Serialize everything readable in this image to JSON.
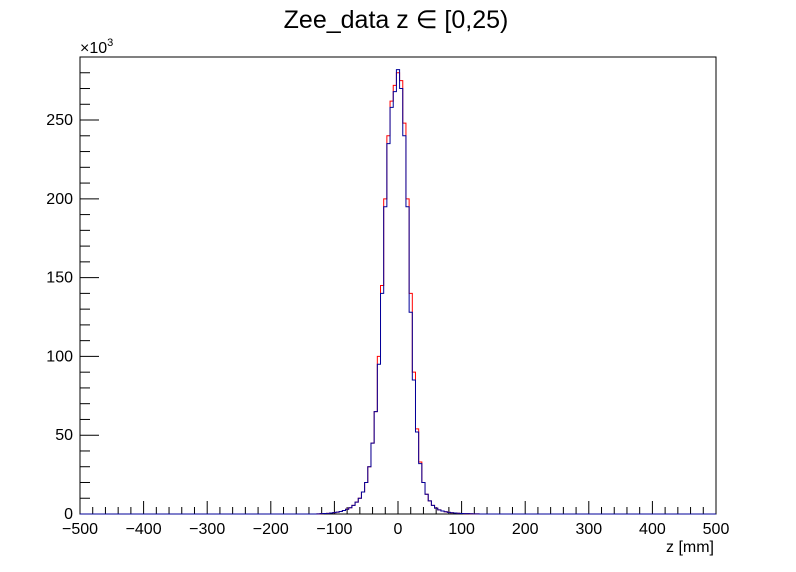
{
  "chart_data": {
    "type": "histogram",
    "title": "Zee_data z  ∈ [0,25)",
    "xlabel": "z [mm]",
    "ylabel": "",
    "y_multiplier": "×10",
    "y_multiplier_exponent": "3",
    "xlim": [
      -500,
      500
    ],
    "ylim": [
      0,
      290
    ],
    "x_ticks": [
      "−500",
      "−400",
      "−300",
      "−200",
      "−100",
      "0",
      "100",
      "200",
      "300",
      "400",
      "500"
    ],
    "y_ticks": [
      "0",
      "50",
      "100",
      "150",
      "200",
      "250"
    ],
    "grid": false,
    "bin_width": 5,
    "series": [
      {
        "color": "#ff0000",
        "x": [
          -125,
          -120,
          -115,
          -110,
          -105,
          -100,
          -95,
          -90,
          -85,
          -80,
          -75,
          -70,
          -65,
          -60,
          -55,
          -50,
          -45,
          -40,
          -35,
          -30,
          -25,
          -20,
          -15,
          -10,
          -5,
          0,
          5,
          10,
          15,
          20,
          25,
          30,
          35,
          40,
          45,
          50,
          55,
          60,
          65,
          70,
          75,
          80,
          85,
          90,
          95,
          100,
          105,
          110,
          115,
          120,
          125
        ],
        "values": [
          0.1,
          0.2,
          0.3,
          0.4,
          0.6,
          0.9,
          1.2,
          1.6,
          2.2,
          3.0,
          4.0,
          5.5,
          7.5,
          10,
          14,
          20,
          30,
          45,
          65,
          100,
          145,
          200,
          240,
          262,
          272,
          280,
          275,
          248,
          200,
          140,
          90,
          54,
          33,
          20,
          12.5,
          8.3,
          5.5,
          3.7,
          2.6,
          1.9,
          1.4,
          1.0,
          0.8,
          0.6,
          0.45,
          0.35,
          0.25,
          0.2,
          0.15,
          0.1,
          0.05
        ]
      },
      {
        "color": "#000099",
        "x": [
          -125,
          -120,
          -115,
          -110,
          -105,
          -100,
          -95,
          -90,
          -85,
          -80,
          -75,
          -70,
          -65,
          -60,
          -55,
          -50,
          -45,
          -40,
          -35,
          -30,
          -25,
          -20,
          -15,
          -10,
          -5,
          0,
          5,
          10,
          15,
          20,
          25,
          30,
          35,
          40,
          45,
          50,
          55,
          60,
          65,
          70,
          75,
          80,
          85,
          90,
          95,
          100,
          105,
          110,
          115,
          120,
          125
        ],
        "values": [
          0.1,
          0.2,
          0.3,
          0.4,
          0.6,
          0.9,
          1.2,
          1.6,
          2.2,
          3.0,
          4.0,
          5.5,
          7.5,
          10,
          14,
          20,
          30,
          45,
          65,
          95,
          140,
          195,
          235,
          258,
          268,
          282,
          270,
          240,
          195,
          128,
          85,
          52,
          32,
          20,
          12.5,
          8.3,
          5.5,
          3.7,
          2.6,
          1.9,
          1.4,
          1.0,
          0.8,
          0.6,
          0.45,
          0.35,
          0.25,
          0.2,
          0.15,
          0.1,
          0.05
        ]
      }
    ]
  }
}
